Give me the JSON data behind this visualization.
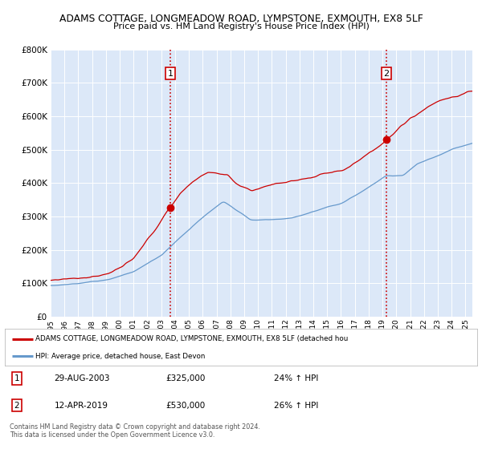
{
  "title": "ADAMS COTTAGE, LONGMEADOW ROAD, LYMPSTONE, EXMOUTH, EX8 5LF",
  "subtitle": "Price paid vs. HM Land Registry's House Price Index (HPI)",
  "legend_line1": "ADAMS COTTAGE, LONGMEADOW ROAD, LYMPSTONE, EXMOUTH, EX8 5LF (detached hou",
  "legend_line2": "HPI: Average price, detached house, East Devon",
  "annotation1_date": "29-AUG-2003",
  "annotation1_price": "£325,000",
  "annotation1_hpi": "24% ↑ HPI",
  "annotation2_date": "12-APR-2019",
  "annotation2_price": "£530,000",
  "annotation2_hpi": "26% ↑ HPI",
  "footer1": "Contains HM Land Registry data © Crown copyright and database right 2024.",
  "footer2": "This data is licensed under the Open Government Licence v3.0.",
  "red_color": "#cc0000",
  "blue_color": "#6699cc",
  "background_color": "#dce8f8",
  "plot_bg_color": "#ffffff",
  "vline_color": "#cc0000",
  "ylim": [
    0,
    800000
  ],
  "xlim_start": 1995,
  "xlim_end": 2025.5,
  "marker1_x": 2003.66,
  "marker1_y": 325000,
  "marker2_x": 2019.28,
  "marker2_y": 530000,
  "vline1_x": 2003.66,
  "vline2_x": 2019.28
}
